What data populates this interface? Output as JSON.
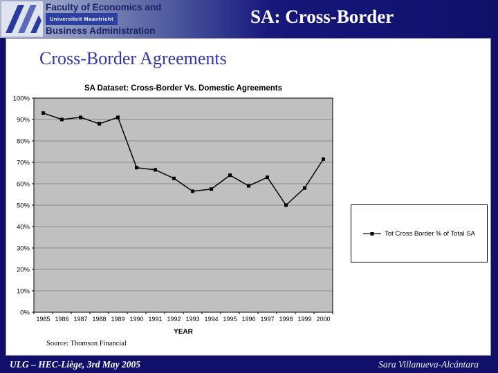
{
  "slide": {
    "header": {
      "title": "SA: Cross-Border",
      "logo": {
        "line1": "Faculty of Economics and",
        "line2": "Universiteit Maastricht",
        "line3": "Business Administration"
      }
    },
    "content": {
      "title": "Cross-Border Agreements",
      "source": "Source: Thomson Financial"
    },
    "footer": {
      "left": "ULG – HEC-Liège, 3rd May 2005",
      "right": "Sara Villanueva-Alcántara"
    }
  },
  "colors": {
    "navy": "#10106b",
    "content_title_blue": "#3434ae",
    "plot_bg": "#c0c0c0",
    "gridline": "#8a8a8a",
    "series_color": "#000000"
  },
  "chart_data": {
    "type": "line",
    "title": "SA Dataset: Cross-Border Vs. Domestic Agreements",
    "xlabel": "YEAR",
    "ylabel": "",
    "categories": [
      "1985",
      "1986",
      "1987",
      "1988",
      "1989",
      "1990",
      "1991",
      "1992",
      "1993",
      "1994",
      "1995",
      "1996",
      "1997",
      "1998",
      "1999",
      "2000"
    ],
    "series": [
      {
        "name": "Tot Cross Border % of Total SA",
        "values": [
          93,
          90,
          91,
          88,
          91,
          67.5,
          66.5,
          62.5,
          56.5,
          57.5,
          64,
          59,
          63,
          50,
          58,
          71.5
        ]
      }
    ],
    "ylim": [
      0,
      100
    ],
    "ytick_step": 10,
    "ytick_labels": [
      "0%",
      "10%",
      "20%",
      "30%",
      "40%",
      "50%",
      "60%",
      "70%",
      "80%",
      "90%",
      "100%"
    ],
    "grid": true,
    "legend_position": "right",
    "plot_bg": "#c0c0c0",
    "marker": "square"
  }
}
